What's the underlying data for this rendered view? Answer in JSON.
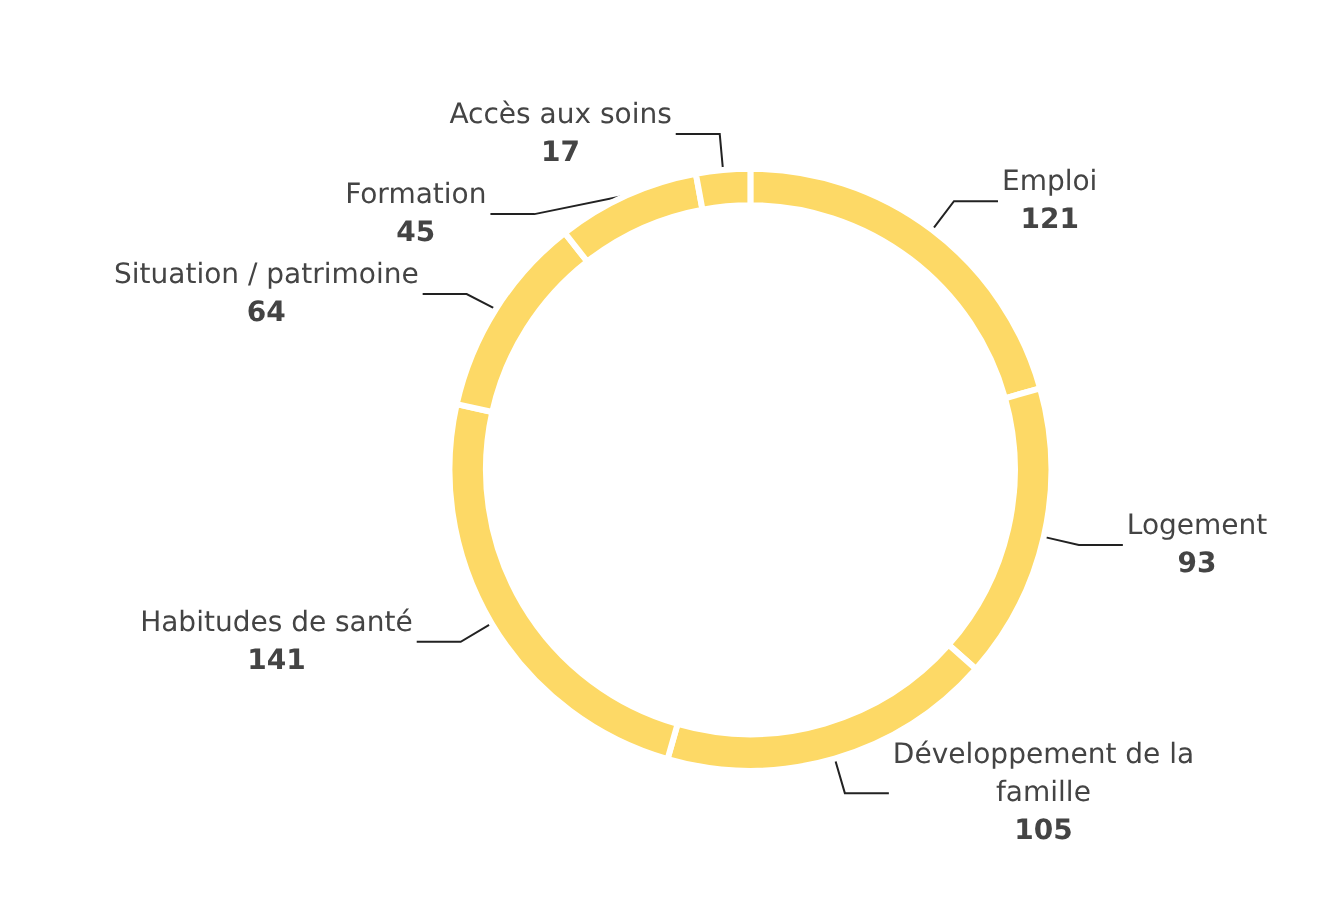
{
  "chart_data": {
    "type": "donut",
    "categories": [
      "Emploi",
      "Logement",
      "Développement de la famille",
      "Habitudes de santé",
      "Situation / patrimoine",
      "Formation",
      "Accès aux soins"
    ],
    "values": [
      121,
      93,
      105,
      141,
      64,
      45,
      17
    ],
    "colors": [
      "#fdd966",
      "#fdd966",
      "#fdd966",
      "#fdd966",
      "#fdd966",
      "#fdd966",
      "#fdd966"
    ],
    "data_labels": true
  }
}
